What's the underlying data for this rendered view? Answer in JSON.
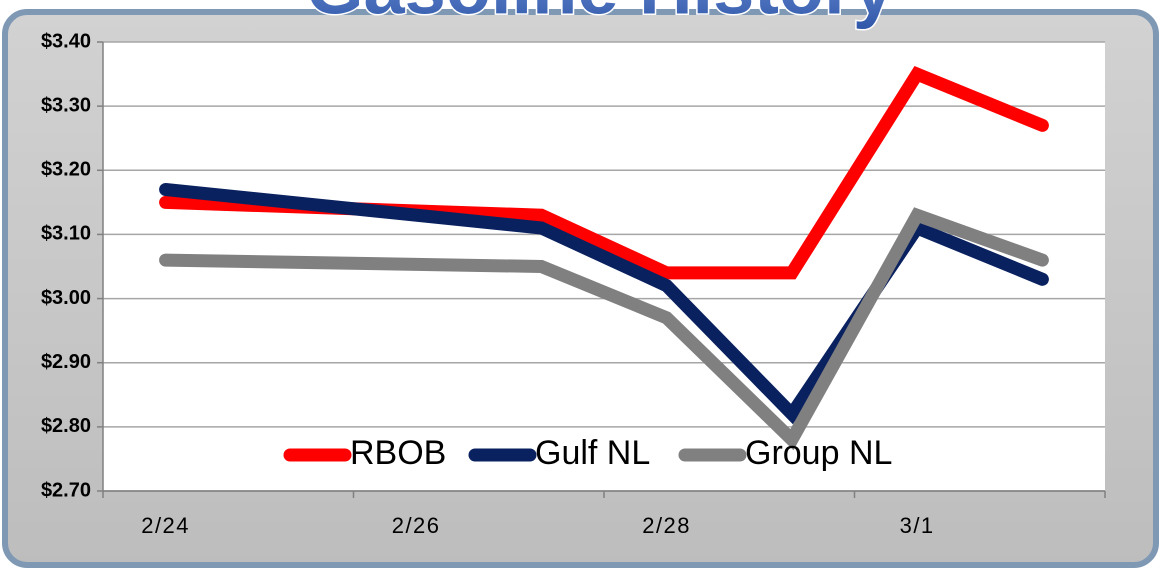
{
  "chart_data": {
    "type": "line",
    "title": "Gasoline History",
    "categories": [
      "2/24",
      null,
      "2/26",
      null,
      "2/28",
      null,
      "3/1",
      null
    ],
    "connect_gaps": true,
    "series": [
      {
        "name": "RBOB",
        "color": "#ff0000",
        "values": [
          3.15,
          null,
          null,
          3.13,
          3.04,
          3.04,
          3.35,
          3.27
        ]
      },
      {
        "name": "Gulf NL",
        "color": "#0a2160",
        "values": [
          3.17,
          null,
          null,
          3.11,
          3.02,
          2.82,
          3.11,
          3.03
        ]
      },
      {
        "name": "Group NL",
        "color": "#808080",
        "values": [
          3.06,
          null,
          null,
          3.05,
          2.97,
          2.78,
          3.13,
          3.06
        ]
      }
    ],
    "ylim": [
      2.7,
      3.4
    ],
    "yticks": [
      {
        "value": 2.7,
        "label": "$2.70"
      },
      {
        "value": 2.8,
        "label": "$2.80"
      },
      {
        "value": 2.9,
        "label": "$2.90"
      },
      {
        "value": 3.0,
        "label": "$3.00"
      },
      {
        "value": 3.1,
        "label": "$3.10"
      },
      {
        "value": 3.2,
        "label": "$3.20"
      },
      {
        "value": 3.3,
        "label": "$3.30"
      },
      {
        "value": 3.4,
        "label": "$3.40"
      }
    ],
    "grid": true,
    "legend": "bottom"
  }
}
